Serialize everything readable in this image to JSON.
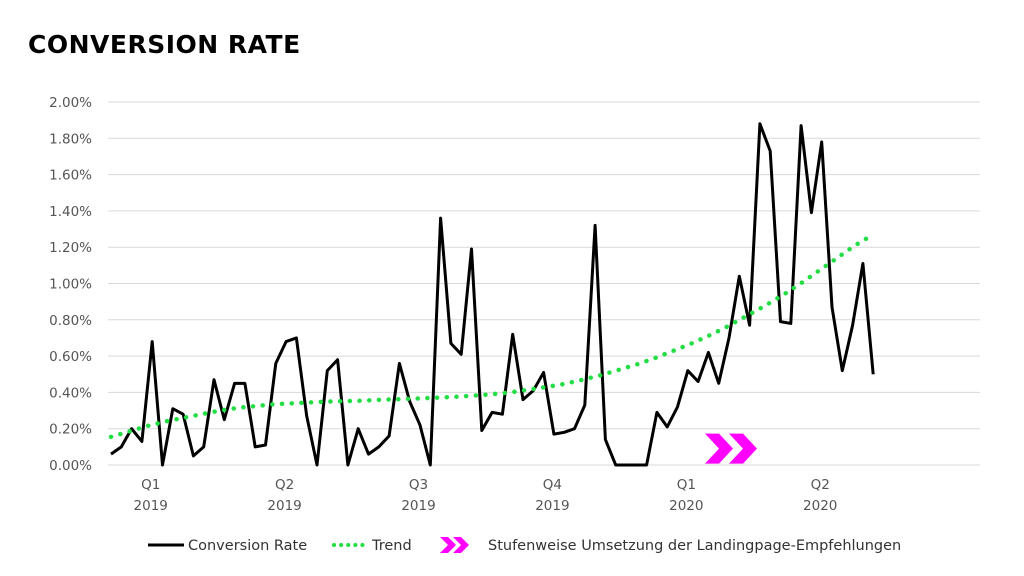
{
  "colors": {
    "line": "#000000",
    "trend": "#22dd44",
    "marker": "#ff00ff",
    "grid": "#d9d9d9",
    "axis_text": "#555555"
  },
  "chart_data": {
    "type": "line",
    "title": "CONVERSION RATE",
    "ylim": [
      0,
      2.0
    ],
    "y_ticks": [
      0,
      0.2,
      0.4,
      0.6,
      0.8,
      1.0,
      1.2,
      1.4,
      1.6,
      1.8,
      2.0
    ],
    "y_tick_labels": [
      "0.00%",
      "0.20%",
      "0.40%",
      "0.60%",
      "0.80%",
      "1.00%",
      "1.20%",
      "1.40%",
      "1.60%",
      "1.80%",
      "2.00%"
    ],
    "x_tick_labels": [
      {
        "quarter": "Q1",
        "year": "2019",
        "index": 4
      },
      {
        "quarter": "Q2",
        "year": "2019",
        "index": 17
      },
      {
        "quarter": "Q3",
        "year": "2019",
        "index": 30
      },
      {
        "quarter": "Q4",
        "year": "2019",
        "index": 43
      },
      {
        "quarter": "Q1",
        "year": "2020",
        "index": 56
      },
      {
        "quarter": "Q2",
        "year": "2020",
        "index": 69
      }
    ],
    "grid": true,
    "legend_position": "bottom",
    "series": [
      {
        "name": "Conversion Rate",
        "style": "solid",
        "values": [
          0.06,
          0.1,
          0.2,
          0.13,
          0.68,
          0.0,
          0.31,
          0.28,
          0.05,
          0.1,
          0.47,
          0.25,
          0.45,
          0.45,
          0.1,
          0.11,
          0.56,
          0.68,
          0.7,
          0.27,
          0.0,
          0.52,
          0.58,
          0.0,
          0.2,
          0.06,
          0.1,
          0.16,
          0.56,
          0.35,
          0.22,
          0.0,
          1.36,
          0.67,
          0.61,
          1.19,
          0.19,
          0.29,
          0.28,
          0.72,
          0.36,
          0.41,
          0.51,
          0.17,
          0.18,
          0.2,
          0.33,
          1.32,
          0.14,
          0.0,
          0.0,
          0.0,
          0.0,
          0.29,
          0.21,
          0.32,
          0.52,
          0.46,
          0.62,
          0.45,
          0.7,
          1.04,
          0.77,
          1.88,
          1.73,
          0.79,
          0.78,
          1.87,
          1.39,
          1.78,
          0.87,
          0.52,
          0.77,
          1.11,
          0.5
        ]
      },
      {
        "name": "Trend",
        "style": "dotted",
        "values": [
          0.155,
          0.185,
          0.215,
          0.24,
          0.26,
          0.28,
          0.3,
          0.315,
          0.325,
          0.335,
          0.34,
          0.345,
          0.35,
          0.352,
          0.355,
          0.36,
          0.363,
          0.367,
          0.371,
          0.376,
          0.382,
          0.39,
          0.4,
          0.415,
          0.43,
          0.447,
          0.47,
          0.495,
          0.525,
          0.555,
          0.59,
          0.63,
          0.67,
          0.715,
          0.765,
          0.82,
          0.875,
          0.935,
          1.0,
          1.07,
          1.14,
          1.21,
          1.27
        ]
      }
    ],
    "annotations": [
      {
        "type": "chevron-marker",
        "x_index": 60,
        "y": 0.09
      }
    ]
  },
  "legend": {
    "line_label": "Conversion Rate",
    "trend_label": "Trend",
    "marker_label": "Stufenweise Umsetzung der Landingpage-Empfehlungen"
  }
}
